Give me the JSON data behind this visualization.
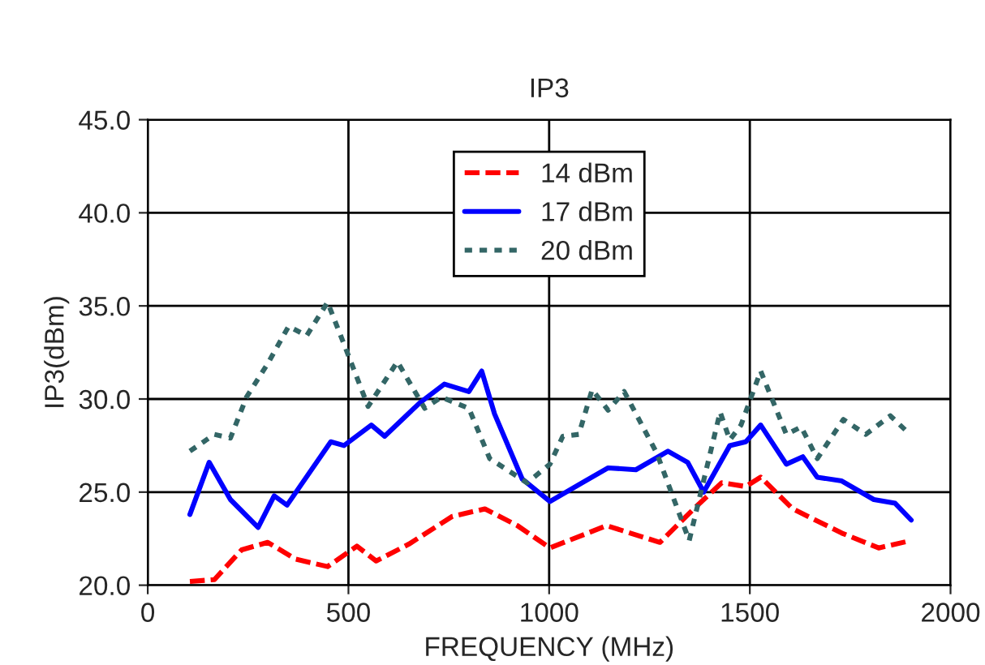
{
  "chart_data": {
    "type": "line",
    "title": "IP3",
    "xlabel": "FREQUENCY (MHz)",
    "ylabel": "IP3(dBm)",
    "xlim": [
      0,
      2000
    ],
    "xticks": [
      0,
      500,
      1000,
      1500,
      2000
    ],
    "ylim": [
      20,
      45
    ],
    "yticks": [
      {
        "value": 20,
        "label": "20.0"
      },
      {
        "value": 25,
        "label": "25.0"
      },
      {
        "value": 30,
        "label": "30.0"
      },
      {
        "value": 35,
        "label": "35.0"
      },
      {
        "value": 40,
        "label": "40.0"
      },
      {
        "value": 45,
        "label": "45.0"
      }
    ],
    "grid": true,
    "legend": "top",
    "marker": "none",
    "series": [
      {
        "name": "14 dBm",
        "color": "#ff0000",
        "line_style": "dashed",
        "x": [
          105,
          166,
          234,
          299,
          368,
          448,
          521,
          569,
          650,
          759,
          840,
          921,
          1002,
          1143,
          1276,
          1365,
          1430,
          1490,
          1527,
          1607,
          1729,
          1821,
          1902
        ],
        "values": [
          20.2,
          20.3,
          21.9,
          22.3,
          21.4,
          21.0,
          22.1,
          21.3,
          22.2,
          23.7,
          24.1,
          23.2,
          22.0,
          23.2,
          22.3,
          24.2,
          25.5,
          25.3,
          25.8,
          24.1,
          22.8,
          22.0,
          22.4
        ]
      },
      {
        "name": "17 dBm",
        "color": "#0000ff",
        "line_style": "solid",
        "x": [
          105,
          153,
          206,
          275,
          315,
          347,
          456,
          489,
          557,
          590,
          678,
          739,
          800,
          832,
          864,
          933,
          1002,
          1082,
          1147,
          1216,
          1296,
          1345,
          1385,
          1450,
          1490,
          1527,
          1591,
          1632,
          1668,
          1729,
          1809,
          1862,
          1902
        ],
        "values": [
          23.8,
          26.6,
          24.6,
          23.1,
          24.8,
          24.3,
          27.7,
          27.5,
          28.6,
          28.0,
          29.8,
          30.8,
          30.4,
          31.5,
          29.2,
          25.7,
          24.5,
          25.5,
          26.3,
          26.2,
          27.2,
          26.6,
          25.0,
          27.5,
          27.7,
          28.6,
          26.5,
          26.9,
          25.8,
          25.6,
          24.6,
          24.4,
          23.5
        ]
      },
      {
        "name": "20 dBm",
        "color": "#336666",
        "line_style": "dotted",
        "x": [
          105,
          166,
          206,
          246,
          299,
          351,
          396,
          448,
          497,
          549,
          622,
          690,
          731,
          800,
          852,
          945,
          1002,
          1034,
          1074,
          1107,
          1147,
          1187,
          1268,
          1349,
          1426,
          1450,
          1478,
          1527,
          1591,
          1628,
          1668,
          1733,
          1789,
          1850,
          1894
        ],
        "values": [
          27.2,
          28.1,
          27.9,
          30.1,
          31.9,
          33.9,
          33.4,
          35.2,
          32.5,
          29.6,
          32.0,
          29.5,
          30.1,
          29.5,
          26.8,
          25.5,
          26.5,
          28.0,
          28.1,
          30.5,
          29.4,
          30.4,
          27.1,
          22.4,
          29.3,
          27.8,
          28.6,
          31.5,
          28.1,
          28.5,
          26.8,
          28.9,
          28.1,
          29.1,
          28.2
        ]
      }
    ]
  }
}
